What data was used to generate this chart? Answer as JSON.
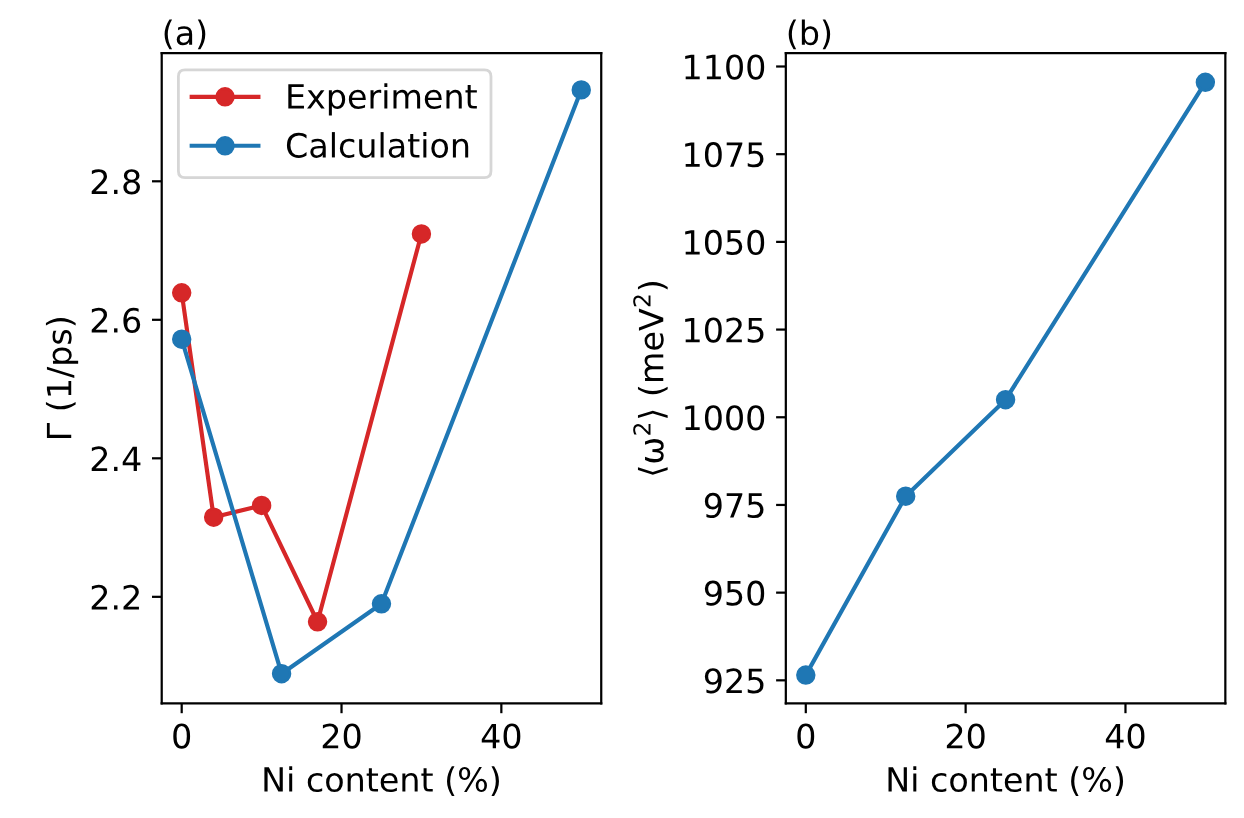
{
  "chart_data": [
    {
      "type": "line",
      "title": "(a)",
      "xlabel": "Ni content (%)",
      "ylabel": "Γ (1/ps)",
      "xlim": [
        -2.5,
        52.5
      ],
      "xticks": [
        0,
        20,
        40
      ],
      "ylim": [
        2.046,
        2.985
      ],
      "yticks": [
        2.2,
        2.4,
        2.6,
        2.8
      ],
      "marker": "circle",
      "legend": "top left",
      "grid": false,
      "series": [
        {
          "name": "Experiment",
          "color": "#d62728",
          "x": [
            0,
            4,
            10,
            17,
            30
          ],
          "values": [
            2.639,
            2.315,
            2.332,
            2.164,
            2.724
          ]
        },
        {
          "name": "Calculation",
          "color": "#1f77b4",
          "x": [
            0,
            12.5,
            25,
            50
          ],
          "values": [
            2.572,
            2.089,
            2.19,
            2.932
          ]
        }
      ]
    },
    {
      "type": "line",
      "title": "(b)",
      "xlabel": "Ni content (%)",
      "ylabel": "⟨ω$^{2}$⟩ (meV$^{2}$)",
      "xlim": [
        -2.5,
        52.5
      ],
      "xticks": [
        0,
        20,
        40
      ],
      "ylim": [
        918.4,
        1103.8
      ],
      "yticks": [
        925,
        950,
        975,
        1000,
        1025,
        1050,
        1075,
        1100
      ],
      "marker": "circle",
      "grid": false,
      "series": [
        {
          "color": "#1f77b4",
          "x": [
            0,
            12.5,
            25,
            50
          ],
          "values": [
            926.5,
            977.5,
            1005,
            1095.5
          ]
        }
      ]
    }
  ]
}
